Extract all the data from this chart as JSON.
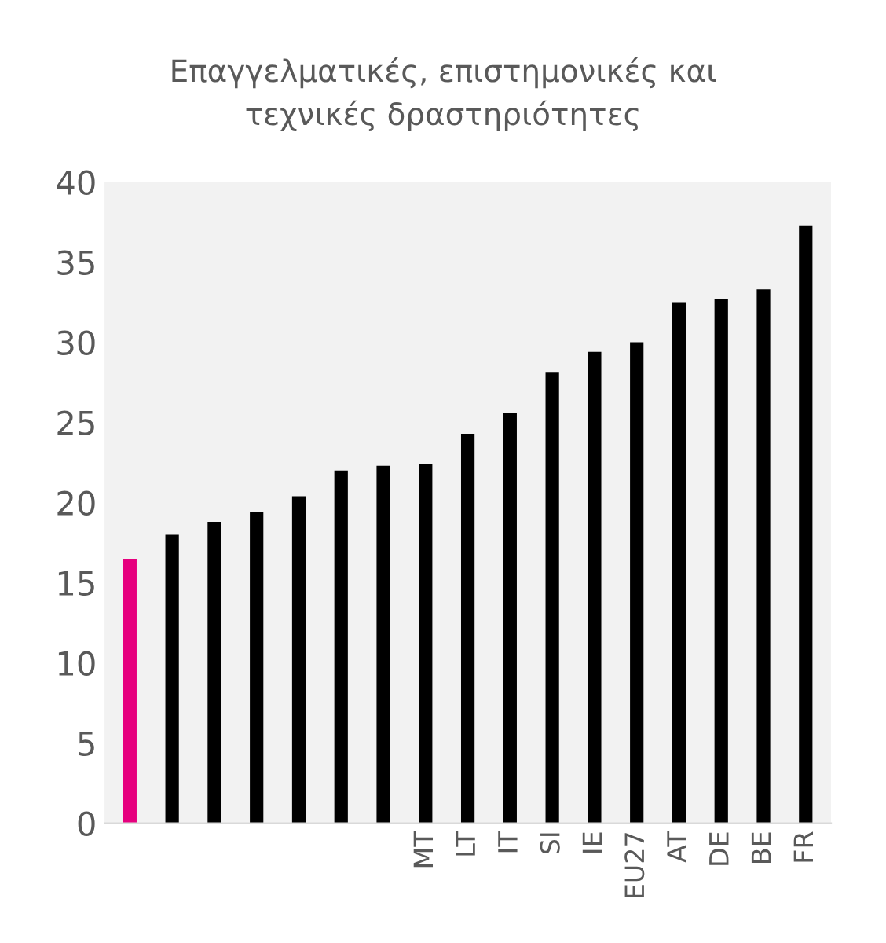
{
  "chart_data": {
    "type": "bar",
    "title": "Επαγγελματικές, επιστημονικές και\nτεχνικές δραστηριότητες",
    "categories": [
      null,
      null,
      null,
      null,
      null,
      null,
      null,
      "MT",
      "LT",
      "IT",
      "SI",
      "IE",
      "EU27",
      "AT",
      "DE",
      "BE",
      "FR"
    ],
    "values": [
      16.5,
      18.0,
      18.8,
      19.4,
      20.4,
      22.0,
      22.3,
      22.4,
      24.3,
      25.6,
      28.1,
      29.4,
      30.0,
      32.5,
      32.7,
      33.3,
      37.3
    ],
    "colors": [
      "#e6007e",
      "#000000",
      "#000000",
      "#000000",
      "#000000",
      "#000000",
      "#000000",
      "#000000",
      "#000000",
      "#000000",
      "#000000",
      "#000000",
      "#000000",
      "#000000",
      "#000000",
      "#000000",
      "#000000"
    ],
    "ylim": [
      0,
      40
    ],
    "yticks": [
      0,
      5,
      10,
      15,
      20,
      25,
      30,
      35,
      40
    ],
    "grid": false,
    "legend": false
  }
}
